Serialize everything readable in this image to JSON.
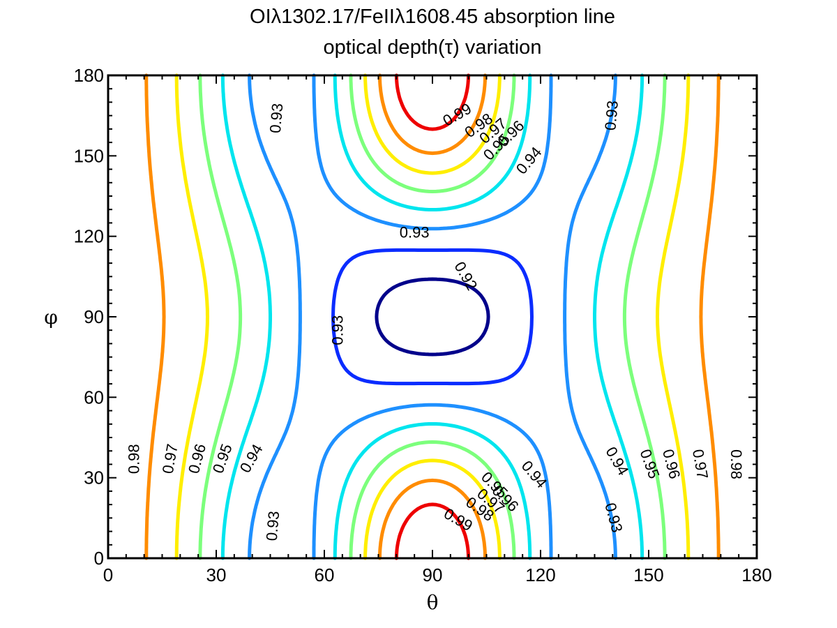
{
  "title_line1": "OIλ1302.17/FeIIλ1608.45 absorption line",
  "title_line2": "optical depth(τ) variation",
  "chart_data": {
    "type": "contour",
    "title": "OIλ1302.17/FeIIλ1608.45 absorption line optical depth(τ) variation",
    "xlabel": "θ",
    "ylabel": "φ",
    "xlim": [
      0,
      180
    ],
    "ylim": [
      0,
      180
    ],
    "xticks": [
      "0",
      "30",
      "60",
      "90",
      "120",
      "150",
      "180"
    ],
    "yticks": [
      "0",
      "30",
      "60",
      "90",
      "120",
      "150",
      "180"
    ],
    "levels": [
      {
        "value": 0.92,
        "label": "0.92",
        "color": "#00008b"
      },
      {
        "value": 0.93,
        "label": "0.93",
        "color": "#0a2cff"
      },
      {
        "value": 0.94,
        "label": "0.94",
        "color": "#1e90ff"
      },
      {
        "value": 0.95,
        "label": "0.95",
        "color": "#00e5ee"
      },
      {
        "value": 0.96,
        "label": "0.96",
        "color": "#7cff7c"
      },
      {
        "value": 0.97,
        "label": "0.97",
        "color": "#ffee00"
      },
      {
        "value": 0.98,
        "label": "0.98",
        "color": "#ff8c00"
      },
      {
        "value": 0.99,
        "label": "0.99",
        "color": "#ee0000"
      }
    ],
    "center": {
      "theta": 90,
      "phi": 90,
      "value": 0.915
    },
    "contour_labels": [
      {
        "text": "0.98",
        "theta": 7.5,
        "phi": 37,
        "angle": -90
      },
      {
        "text": "0.97",
        "theta": 17.5,
        "phi": 37,
        "angle": -80
      },
      {
        "text": "0.96",
        "theta": 25,
        "phi": 37,
        "angle": -75
      },
      {
        "text": "0.95",
        "theta": 32,
        "phi": 37,
        "angle": -70
      },
      {
        "text": "0.94",
        "theta": 40,
        "phi": 37,
        "angle": -60
      },
      {
        "text": "0.93",
        "theta": 47,
        "phi": 164,
        "angle": -85
      },
      {
        "text": "0.93",
        "theta": 46,
        "phi": 12,
        "angle": -85
      },
      {
        "text": "0.93",
        "theta": 85,
        "phi": 121,
        "angle": 0
      },
      {
        "text": "0.93",
        "theta": 64,
        "phi": 85,
        "angle": -90
      },
      {
        "text": "0.92",
        "theta": 99,
        "phi": 105,
        "angle": 60
      },
      {
        "text": "0.93",
        "theta": 140,
        "phi": 165,
        "angle": -85
      },
      {
        "text": "0.93",
        "theta": 140,
        "phi": 15,
        "angle": 75
      },
      {
        "text": "0.94",
        "theta": 141,
        "phi": 36,
        "angle": 60
      },
      {
        "text": "0.95",
        "theta": 150,
        "phi": 35,
        "angle": 70
      },
      {
        "text": "0.96",
        "theta": 156,
        "phi": 35,
        "angle": 75
      },
      {
        "text": "0.97",
        "theta": 164,
        "phi": 35,
        "angle": 80
      },
      {
        "text": "0.98",
        "theta": 174,
        "phi": 35,
        "angle": 90
      },
      {
        "text": "0.99",
        "theta": 97,
        "phi": 165,
        "angle": -30
      },
      {
        "text": "0.98",
        "theta": 103,
        "phi": 161,
        "angle": -35
      },
      {
        "text": "0.97",
        "theta": 107,
        "phi": 159,
        "angle": -40
      },
      {
        "text": "0.96",
        "theta": 112,
        "phi": 158,
        "angle": -45
      },
      {
        "text": "0.95",
        "theta": 108,
        "phi": 153,
        "angle": -45
      },
      {
        "text": "0.94",
        "theta": 117,
        "phi": 148,
        "angle": -50
      },
      {
        "text": "0.99",
        "theta": 97,
        "phi": 14,
        "angle": 30
      },
      {
        "text": "0.98",
        "theta": 103,
        "phi": 18,
        "angle": 35
      },
      {
        "text": "0.97",
        "theta": 106,
        "phi": 21,
        "angle": 40
      },
      {
        "text": "0.96",
        "theta": 110,
        "phi": 22,
        "angle": 45
      },
      {
        "text": "0.95",
        "theta": 107,
        "phi": 27,
        "angle": 45
      },
      {
        "text": "0.94",
        "theta": 118,
        "phi": 31,
        "angle": 50
      }
    ]
  }
}
